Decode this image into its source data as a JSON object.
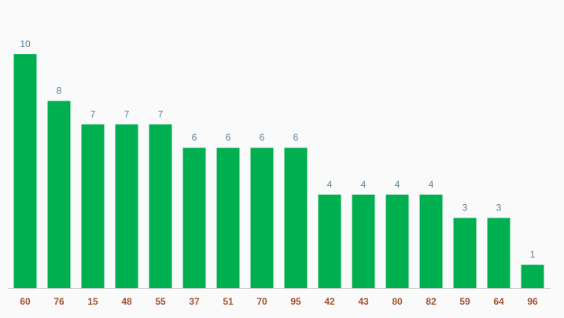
{
  "chart_data": {
    "type": "bar",
    "categories": [
      "60",
      "76",
      "15",
      "48",
      "55",
      "37",
      "51",
      "70",
      "95",
      "42",
      "43",
      "80",
      "82",
      "59",
      "64",
      "96"
    ],
    "values": [
      10,
      8,
      7,
      7,
      7,
      6,
      6,
      6,
      6,
      4,
      4,
      4,
      4,
      3,
      3,
      1
    ],
    "color": "#00b050"
  }
}
